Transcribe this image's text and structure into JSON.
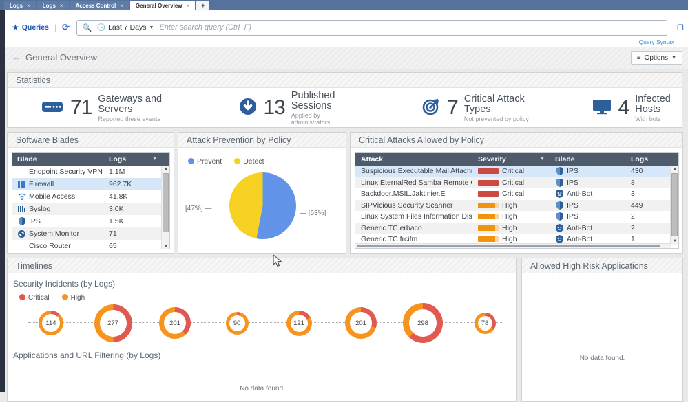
{
  "colors": {
    "tab_bar": "#54729c",
    "selection_row": "#d5e7f8",
    "table_header": "#4d5b6b",
    "accent_blue": "#1e56b0",
    "link_blue": "#3a8ddd",
    "icon_navy": "#2d5f9a",
    "critical_red": "#cc4a42",
    "high_orange": "#f2930d",
    "donut_red": "#e05a52",
    "donut_orange": "#f7941e",
    "pie_blue": "#6193e8",
    "pie_yellow": "#f6d122"
  },
  "tabs": {
    "close": "×",
    "new_tab": "+",
    "items": [
      {
        "label": "Logs"
      },
      {
        "label": "Logs"
      },
      {
        "label": "Access Control"
      },
      {
        "label": "General Overview",
        "active": true
      }
    ]
  },
  "toolbar": {
    "queries": "Queries",
    "time_range": "Last 7 Days",
    "search_placeholder": "Enter search query (Ctrl+F)",
    "query_syntax": "Query Syntax"
  },
  "header": {
    "back": "←",
    "title": "General Overview",
    "options": "Options"
  },
  "statistics": {
    "title": "Statistics",
    "items": [
      {
        "icon": "gateway-icon",
        "value": "71",
        "label": "Gateways and Servers",
        "sublabel": "Reported these events"
      },
      {
        "icon": "published-icon",
        "value": "13",
        "label": "Published Sessions",
        "sublabel": "Applied by administrators"
      },
      {
        "icon": "attack-icon",
        "value": "7",
        "label": "Critical Attack Types",
        "sublabel": "Not prevented by policy"
      },
      {
        "icon": "monitor-icon",
        "value": "4",
        "label": "Infected Hosts",
        "sublabel": "With bots"
      }
    ]
  },
  "software_blades": {
    "title": "Software Blades",
    "columns": [
      "Blade",
      "Logs"
    ],
    "rows": [
      {
        "icon": "none",
        "name": "Endpoint Security VPN",
        "logs": "1.1M"
      },
      {
        "icon": "firewall",
        "name": "Firewall",
        "logs": "962.7K",
        "selected": true
      },
      {
        "icon": "mobile",
        "name": "Mobile Access",
        "logs": "41.8K"
      },
      {
        "icon": "syslog",
        "name": "Syslog",
        "logs": "3.0K"
      },
      {
        "icon": "ips",
        "name": "IPS",
        "logs": "1.5K"
      },
      {
        "icon": "sysmon",
        "name": "System Monitor",
        "logs": "71"
      },
      {
        "icon": "none",
        "name": "Cisco Router",
        "logs": "65"
      }
    ]
  },
  "attack_prevention": {
    "title": "Attack Prevention by Policy",
    "legend": [
      {
        "label": "Prevent"
      },
      {
        "label": "Detect"
      }
    ],
    "label_left": "[47%]",
    "label_right": "[53%]"
  },
  "critical_attacks": {
    "title": "Critical Attacks Allowed by Policy",
    "columns": [
      "Attack",
      "Severity",
      "Blade",
      "Logs"
    ],
    "rows": [
      {
        "attack": "Suspicious Executable Mail Attachment",
        "severity": "Critical",
        "blade": "IPS",
        "blade_icon": "ips",
        "logs": "430",
        "selected": true
      },
      {
        "attack": "Linux EternalRed Samba Remote Code Exec...",
        "severity": "Critical",
        "blade": "IPS",
        "blade_icon": "ips",
        "logs": "8"
      },
      {
        "attack": "Backdoor.MSIL.Jaktinier.E",
        "severity": "Critical",
        "blade": "Anti-Bot",
        "blade_icon": "antibot",
        "logs": "3"
      },
      {
        "attack": "SIPVicious Security Scanner",
        "severity": "High",
        "blade": "IPS",
        "blade_icon": "ips",
        "logs": "449"
      },
      {
        "attack": "Linux System Files Information Disclosure",
        "severity": "High",
        "blade": "IPS",
        "blade_icon": "ips",
        "logs": "2"
      },
      {
        "attack": "Generic.TC.erbaco",
        "severity": "High",
        "blade": "Anti-Bot",
        "blade_icon": "antibot",
        "logs": "2"
      },
      {
        "attack": "Generic.TC.frcifm",
        "severity": "High",
        "blade": "Anti-Bot",
        "blade_icon": "antibot",
        "logs": "1"
      }
    ]
  },
  "timelines": {
    "title": "Timelines",
    "subtitle": "Security Incidents (by Logs)",
    "legend": [
      {
        "label": "Critical"
      },
      {
        "label": "High"
      }
    ],
    "apps_subtitle": "Applications and URL Filtering (by Logs)",
    "no_data": "No data found."
  },
  "high_risk": {
    "title": "Allowed High Risk Applications",
    "no_data": "No data found."
  },
  "chart_data": [
    {
      "type": "pie",
      "title": "Attack Prevention by Policy",
      "labels": [
        "Prevent",
        "Detect"
      ],
      "values": [
        53,
        47
      ],
      "colors": [
        "#6193e8",
        "#f6d122"
      ],
      "annotations": [
        "[53%]",
        "[47%]"
      ],
      "legend_position": "top-left"
    },
    {
      "type": "donut-timeline",
      "title": "Security Incidents (by Logs)",
      "series": [
        {
          "name": "Critical",
          "color": "#e05a52"
        },
        {
          "name": "High",
          "color": "#f7941e"
        }
      ],
      "points": [
        {
          "total": 114,
          "critical_pct": 12
        },
        {
          "total": 277,
          "critical_pct": 50
        },
        {
          "total": 201,
          "critical_pct": 38
        },
        {
          "total": 90,
          "critical_pct": 5
        },
        {
          "total": 121,
          "critical_pct": 17
        },
        {
          "total": 201,
          "critical_pct": 30
        },
        {
          "total": 298,
          "critical_pct": 62
        },
        {
          "total": 78,
          "critical_pct": 35
        }
      ]
    }
  ]
}
